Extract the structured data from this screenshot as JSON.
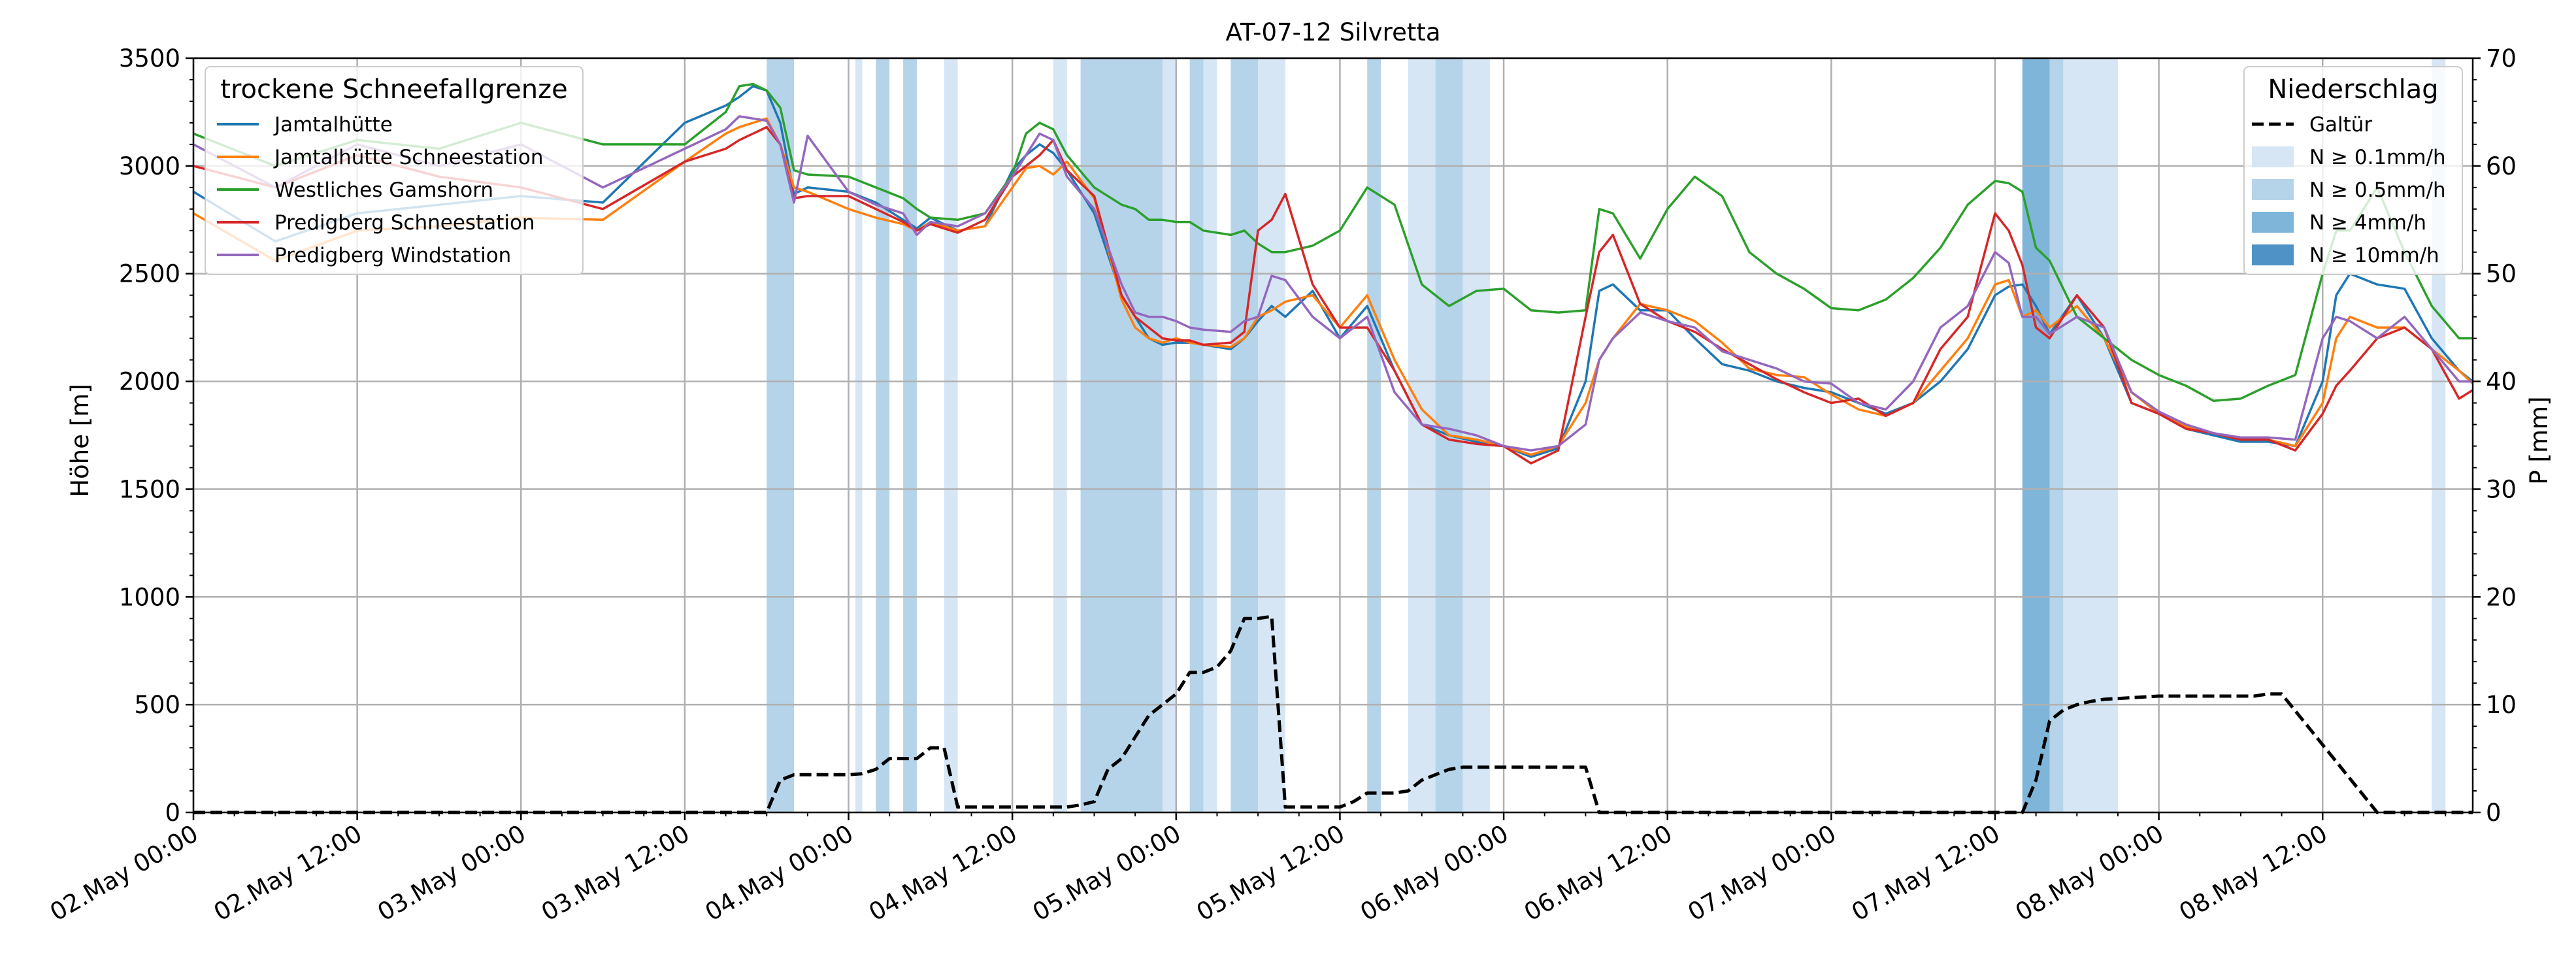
{
  "chart_data": {
    "type": "line",
    "title": "AT-07-12 Silvretta",
    "ylabel_left": "Höhe [m]",
    "ylabel_right": "P [mm]",
    "ylim_left": [
      0,
      3500
    ],
    "ylim_right": [
      0,
      70
    ],
    "yticks_left": [
      0,
      500,
      1000,
      1500,
      2000,
      2500,
      3000,
      3500
    ],
    "yticks_right": [
      0,
      10,
      20,
      30,
      40,
      50,
      60,
      70
    ],
    "xlim_hours": [
      0,
      167
    ],
    "x_tick_labels": [
      "02.May 00:00",
      "02.May 12:00",
      "03.May 00:00",
      "03.May 12:00",
      "04.May 00:00",
      "04.May 12:00",
      "05.May 00:00",
      "05.May 12:00",
      "06.May 00:00",
      "06.May 12:00",
      "07.May 00:00",
      "07.May 12:00",
      "08.May 00:00",
      "08.May 12:00"
    ],
    "x_tick_hours": [
      0,
      12,
      24,
      36,
      48,
      60,
      72,
      84,
      96,
      108,
      120,
      132,
      144,
      156
    ],
    "grid": true,
    "legend_left": {
      "title": "trockene Schneefallgrenze",
      "placement": "top-left"
    },
    "legend_right": {
      "title": "Niederschlag",
      "placement": "top-right",
      "entries": [
        {
          "label": "Galtür",
          "style": "dashed",
          "color": "#000000"
        },
        {
          "label": "N ≥ 0.1mm/h",
          "color": "#d6e6f4"
        },
        {
          "label": "N ≥ 0.5mm/h",
          "color": "#b5d4e9"
        },
        {
          "label": "N ≥ 4mm/h",
          "color": "#7fb5d9"
        },
        {
          "label": "N ≥ 10mm/h",
          "color": "#4f93c6"
        }
      ]
    },
    "precip_bands": [
      {
        "start": 42,
        "end": 44,
        "level": 1
      },
      {
        "start": 48.5,
        "end": 49,
        "level": 0
      },
      {
        "start": 50,
        "end": 51,
        "level": 1
      },
      {
        "start": 52,
        "end": 53,
        "level": 1
      },
      {
        "start": 55,
        "end": 56,
        "level": 0
      },
      {
        "start": 63,
        "end": 64,
        "level": 0
      },
      {
        "start": 65,
        "end": 71,
        "level": 1
      },
      {
        "start": 71,
        "end": 72,
        "level": 0
      },
      {
        "start": 73,
        "end": 74,
        "level": 1
      },
      {
        "start": 74,
        "end": 75,
        "level": 0
      },
      {
        "start": 76,
        "end": 78,
        "level": 1
      },
      {
        "start": 78,
        "end": 80,
        "level": 0
      },
      {
        "start": 86,
        "end": 87,
        "level": 1
      },
      {
        "start": 89,
        "end": 91,
        "level": 0
      },
      {
        "start": 91,
        "end": 93,
        "level": 1
      },
      {
        "start": 93,
        "end": 95,
        "level": 0
      },
      {
        "start": 134,
        "end": 136,
        "level": 2
      },
      {
        "start": 136,
        "end": 137,
        "level": 1
      },
      {
        "start": 137,
        "end": 141,
        "level": 0
      },
      {
        "start": 164,
        "end": 165,
        "level": 0
      }
    ],
    "series": [
      {
        "name": "Jamtalhütte",
        "color": "#1f77b4",
        "axis": "left",
        "x": [
          0,
          6,
          12,
          18,
          24,
          30,
          36,
          39,
          40,
          41,
          42,
          43,
          44,
          45,
          48,
          50,
          52,
          53,
          54,
          56,
          58,
          60,
          61,
          62,
          63,
          64,
          66,
          68,
          69,
          70,
          71,
          72,
          73,
          74,
          76,
          77,
          78,
          79,
          80,
          82,
          84,
          86,
          88,
          90,
          92,
          94,
          96,
          98,
          100,
          102,
          103,
          104,
          106,
          108,
          110,
          112,
          114,
          116,
          118,
          120,
          122,
          124,
          126,
          128,
          130,
          132,
          133,
          134,
          135,
          136,
          138,
          140,
          142,
          144,
          146,
          148,
          150,
          152,
          154,
          156,
          157,
          158,
          160,
          162,
          164,
          166,
          167
        ],
        "values": [
          2880,
          2650,
          2780,
          2820,
          2860,
          2830,
          3200,
          3280,
          3320,
          3370,
          3350,
          3200,
          2870,
          2900,
          2880,
          2830,
          2750,
          2710,
          2760,
          2700,
          2720,
          2980,
          3050,
          3100,
          3060,
          2980,
          2780,
          2400,
          2300,
          2200,
          2170,
          2180,
          2180,
          2170,
          2150,
          2200,
          2280,
          2350,
          2300,
          2420,
          2200,
          2350,
          2050,
          1800,
          1750,
          1720,
          1700,
          1650,
          1690,
          2000,
          2420,
          2450,
          2330,
          2330,
          2200,
          2080,
          2050,
          2000,
          1970,
          1950,
          1900,
          1850,
          1900,
          2000,
          2150,
          2400,
          2440,
          2450,
          2350,
          2220,
          2400,
          2200,
          1900,
          1850,
          1780,
          1750,
          1720,
          1720,
          1700,
          2000,
          2400,
          2500,
          2450,
          2430,
          2200,
          2050,
          2000
        ]
      },
      {
        "name": "Jamtalhütte Schneestation",
        "color": "#ff7f0e",
        "axis": "left",
        "x": [
          0,
          6,
          12,
          18,
          24,
          30,
          36,
          39,
          40,
          41,
          42,
          43,
          44,
          45,
          48,
          50,
          52,
          53,
          54,
          56,
          58,
          60,
          61,
          62,
          63,
          64,
          66,
          68,
          69,
          70,
          71,
          72,
          73,
          74,
          76,
          77,
          78,
          79,
          80,
          82,
          84,
          86,
          88,
          90,
          92,
          94,
          96,
          98,
          100,
          102,
          103,
          104,
          106,
          108,
          110,
          112,
          114,
          116,
          118,
          120,
          122,
          124,
          126,
          128,
          130,
          132,
          133,
          134,
          135,
          136,
          138,
          140,
          142,
          144,
          146,
          148,
          150,
          152,
          154,
          156,
          157,
          158,
          160,
          162,
          164,
          166,
          167
        ],
        "values": [
          2780,
          2560,
          2700,
          2720,
          2760,
          2750,
          3020,
          3150,
          3180,
          3200,
          3220,
          3100,
          2900,
          2880,
          2800,
          2760,
          2730,
          2700,
          2740,
          2700,
          2720,
          2900,
          2990,
          3000,
          2960,
          3020,
          2850,
          2380,
          2250,
          2200,
          2180,
          2200,
          2180,
          2170,
          2160,
          2200,
          2300,
          2330,
          2370,
          2400,
          2250,
          2400,
          2100,
          1870,
          1750,
          1730,
          1700,
          1660,
          1700,
          1900,
          2100,
          2200,
          2360,
          2330,
          2280,
          2180,
          2060,
          2030,
          2020,
          1940,
          1870,
          1840,
          1900,
          2050,
          2200,
          2450,
          2470,
          2300,
          2330,
          2250,
          2350,
          2200,
          1950,
          1850,
          1790,
          1760,
          1730,
          1730,
          1700,
          1900,
          2200,
          2300,
          2250,
          2250,
          2150,
          2050,
          1990
        ]
      },
      {
        "name": "Westliches Gamshorn",
        "color": "#2ca02c",
        "axis": "left",
        "x": [
          0,
          6,
          12,
          18,
          24,
          30,
          36,
          39,
          40,
          41,
          42,
          43,
          44,
          45,
          48,
          50,
          52,
          53,
          54,
          56,
          58,
          60,
          61,
          62,
          63,
          64,
          66,
          68,
          69,
          70,
          71,
          72,
          73,
          74,
          76,
          77,
          78,
          79,
          80,
          82,
          84,
          86,
          88,
          90,
          92,
          94,
          96,
          98,
          100,
          102,
          103,
          104,
          106,
          108,
          110,
          112,
          114,
          116,
          118,
          120,
          122,
          124,
          126,
          128,
          130,
          132,
          133,
          134,
          135,
          136,
          138,
          140,
          142,
          144,
          146,
          148,
          150,
          152,
          154,
          156,
          157,
          158,
          160,
          162,
          164,
          166,
          167
        ],
        "values": [
          3150,
          3000,
          3120,
          3080,
          3200,
          3100,
          3100,
          3250,
          3370,
          3380,
          3350,
          3270,
          2980,
          2960,
          2950,
          2900,
          2850,
          2800,
          2760,
          2750,
          2780,
          2960,
          3150,
          3200,
          3170,
          3050,
          2900,
          2820,
          2800,
          2750,
          2750,
          2740,
          2740,
          2700,
          2680,
          2700,
          2640,
          2600,
          2600,
          2630,
          2700,
          2900,
          2820,
          2450,
          2350,
          2420,
          2430,
          2330,
          2320,
          2330,
          2800,
          2780,
          2570,
          2800,
          2950,
          2860,
          2600,
          2500,
          2430,
          2340,
          2330,
          2380,
          2480,
          2620,
          2820,
          2930,
          2920,
          2880,
          2620,
          2560,
          2300,
          2200,
          2100,
          2030,
          1980,
          1910,
          1920,
          1980,
          2030,
          2500,
          2700,
          2700,
          2900,
          2600,
          2350,
          2200,
          2200
        ]
      },
      {
        "name": "Predigberg Schneestation",
        "color": "#d62728",
        "axis": "left",
        "x": [
          0,
          6,
          12,
          18,
          24,
          30,
          36,
          39,
          40,
          41,
          42,
          43,
          44,
          45,
          48,
          50,
          52,
          53,
          54,
          56,
          58,
          60,
          61,
          62,
          63,
          64,
          66,
          68,
          69,
          70,
          71,
          72,
          73,
          74,
          76,
          77,
          78,
          79,
          80,
          82,
          84,
          86,
          88,
          90,
          92,
          94,
          96,
          98,
          100,
          102,
          103,
          104,
          106,
          108,
          110,
          112,
          114,
          116,
          118,
          120,
          122,
          124,
          126,
          128,
          130,
          132,
          133,
          134,
          135,
          136,
          138,
          140,
          142,
          144,
          146,
          148,
          150,
          152,
          154,
          156,
          157,
          158,
          160,
          162,
          164,
          166,
          167
        ],
        "values": [
          3000,
          2900,
          3050,
          2950,
          2900,
          2800,
          3020,
          3080,
          3120,
          3150,
          3180,
          3100,
          2850,
          2860,
          2860,
          2800,
          2740,
          2700,
          2730,
          2690,
          2750,
          2950,
          3000,
          3050,
          3120,
          2980,
          2860,
          2400,
          2300,
          2250,
          2200,
          2190,
          2190,
          2170,
          2180,
          2230,
          2700,
          2750,
          2870,
          2450,
          2250,
          2250,
          2050,
          1800,
          1730,
          1710,
          1700,
          1620,
          1680,
          2300,
          2600,
          2680,
          2360,
          2280,
          2230,
          2150,
          2080,
          2010,
          1950,
          1900,
          1920,
          1840,
          1900,
          2150,
          2300,
          2780,
          2700,
          2540,
          2250,
          2200,
          2400,
          2250,
          1900,
          1850,
          1780,
          1760,
          1730,
          1730,
          1680,
          1850,
          1980,
          2050,
          2200,
          2250,
          2150,
          1920,
          1960
        ]
      },
      {
        "name": "Predigberg Windstation",
        "color": "#9467bd",
        "axis": "left",
        "x": [
          0,
          6,
          12,
          18,
          24,
          30,
          36,
          39,
          40,
          41,
          42,
          43,
          44,
          45,
          48,
          50,
          52,
          53,
          54,
          56,
          58,
          60,
          61,
          62,
          63,
          64,
          66,
          68,
          69,
          70,
          71,
          72,
          73,
          74,
          76,
          77,
          78,
          79,
          80,
          82,
          84,
          86,
          88,
          90,
          92,
          94,
          96,
          98,
          100,
          102,
          103,
          104,
          106,
          108,
          110,
          112,
          114,
          116,
          118,
          120,
          122,
          124,
          126,
          128,
          130,
          132,
          133,
          134,
          135,
          136,
          138,
          140,
          142,
          144,
          146,
          148,
          150,
          152,
          154,
          156,
          157,
          158,
          160,
          162,
          164,
          166,
          167
        ],
        "values": [
          3100,
          2900,
          3100,
          3000,
          3100,
          2900,
          3080,
          3170,
          3230,
          3220,
          3210,
          3100,
          2830,
          3140,
          2880,
          2820,
          2780,
          2680,
          2740,
          2720,
          2780,
          2950,
          3050,
          3150,
          3120,
          2950,
          2800,
          2450,
          2320,
          2300,
          2300,
          2280,
          2250,
          2240,
          2230,
          2280,
          2300,
          2490,
          2470,
          2300,
          2200,
          2300,
          1950,
          1800,
          1780,
          1750,
          1700,
          1680,
          1700,
          1800,
          2100,
          2200,
          2320,
          2280,
          2250,
          2140,
          2100,
          2060,
          2000,
          1990,
          1900,
          1870,
          2000,
          2250,
          2350,
          2600,
          2550,
          2300,
          2300,
          2220,
          2300,
          2250,
          1950,
          1860,
          1800,
          1760,
          1740,
          1740,
          1730,
          2200,
          2300,
          2280,
          2200,
          2300,
          2150,
          2000,
          2000
        ]
      },
      {
        "name": "Galtür",
        "color": "#000000",
        "axis": "right",
        "style": "dashed",
        "x": [
          0,
          42,
          43,
          44,
          47,
          48,
          49,
          50,
          51,
          53,
          54,
          55,
          56,
          63,
          64,
          65,
          66,
          67,
          68,
          69,
          70,
          71,
          72,
          73,
          74,
          75,
          76,
          77,
          78,
          79,
          80,
          83,
          84,
          85,
          86,
          88,
          89,
          90,
          91,
          92,
          93,
          94,
          95,
          96,
          102,
          103,
          134,
          135,
          136,
          137,
          138,
          139,
          140,
          144,
          150,
          151,
          152,
          153,
          160,
          167
        ],
        "values": [
          0,
          0,
          3,
          3.5,
          3.5,
          3.5,
          3.6,
          4,
          5,
          5,
          6,
          6,
          0.5,
          0.5,
          0.5,
          0.7,
          1,
          4,
          5,
          7,
          9,
          10,
          11,
          13,
          13,
          13.5,
          15,
          18,
          18,
          18.2,
          0.5,
          0.5,
          0.5,
          1,
          1.8,
          1.8,
          2,
          3,
          3.5,
          4,
          4.2,
          4.2,
          4.2,
          4.2,
          4.2,
          0,
          0,
          3,
          8.5,
          9.5,
          10,
          10.3,
          10.5,
          10.8,
          10.8,
          10.8,
          11,
          11,
          0,
          0
        ]
      }
    ]
  }
}
